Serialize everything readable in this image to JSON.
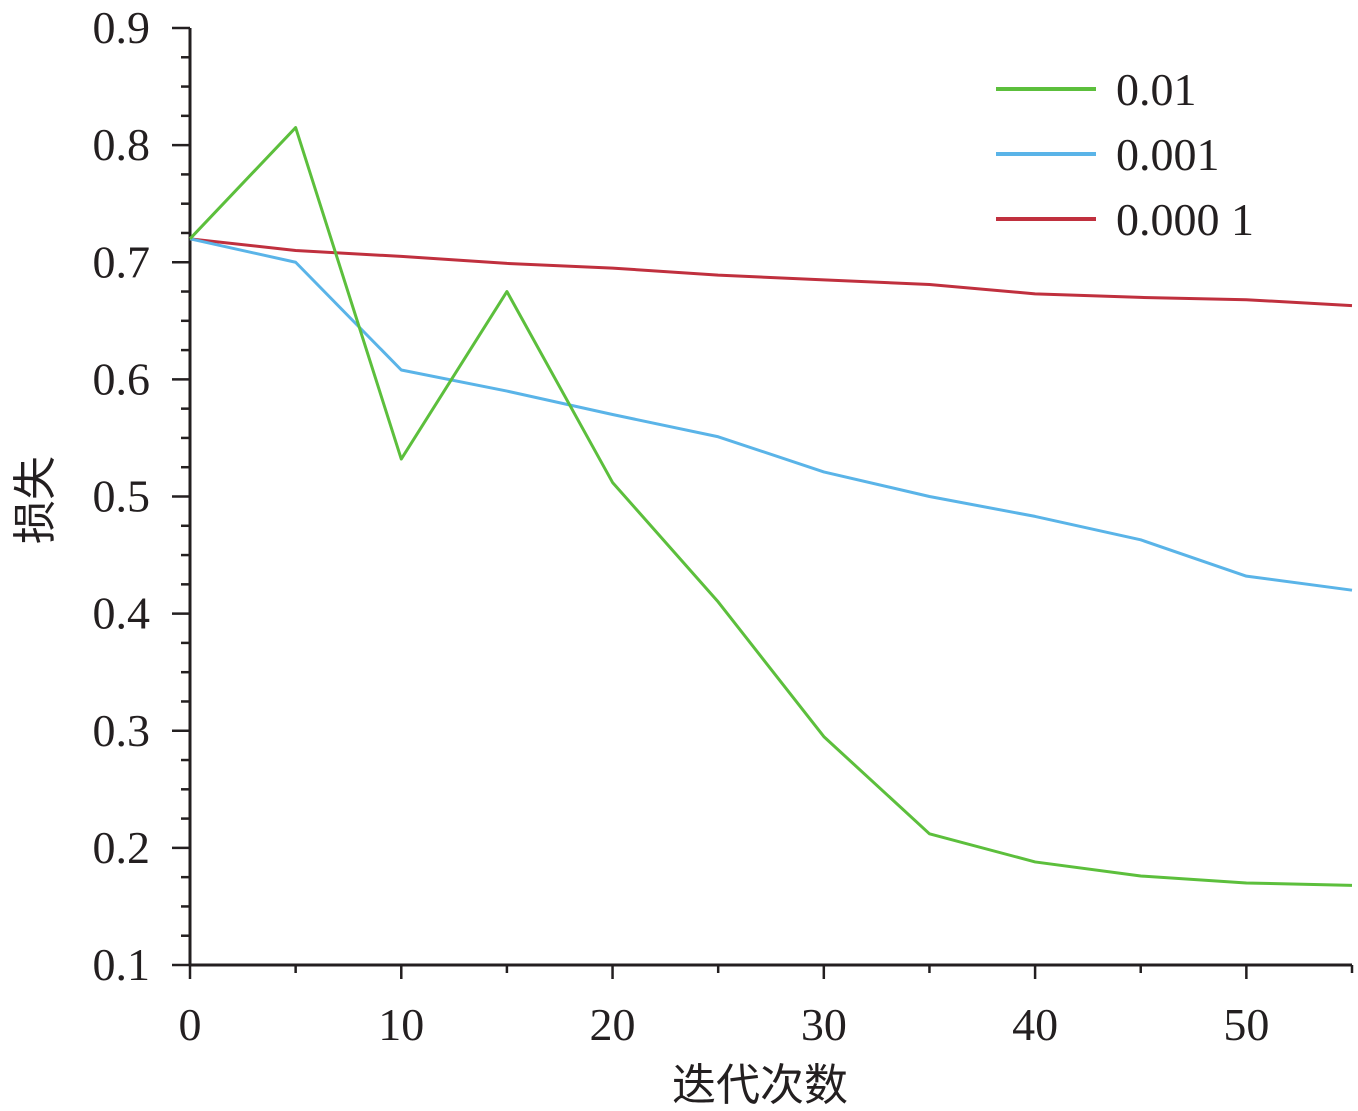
{
  "chart_data": {
    "type": "line",
    "title": "",
    "xlabel": "迭代次数",
    "ylabel": "损失",
    "xlim": [
      0,
      55
    ],
    "ylim": [
      0.1,
      0.9
    ],
    "xticks": [
      0,
      10,
      20,
      30,
      40,
      50
    ],
    "xtick_labels": [
      "0",
      "10",
      "20",
      "30",
      "40",
      "50"
    ],
    "yticks": [
      0.1,
      0.2,
      0.3,
      0.4,
      0.5,
      0.6,
      0.7,
      0.8,
      0.9
    ],
    "ytick_labels": [
      "0.1",
      "0.2",
      "0.3",
      "0.4",
      "0.5",
      "0.6",
      "0.7",
      "0.8",
      "0.9"
    ],
    "grid": false,
    "legend_position": "top-right",
    "x": [
      0,
      5,
      10,
      15,
      20,
      25,
      30,
      35,
      40,
      45,
      50,
      55
    ],
    "series": [
      {
        "name": "0.01",
        "color": "#5cbf3c",
        "values": [
          0.72,
          0.815,
          0.532,
          0.675,
          0.512,
          0.41,
          0.295,
          0.212,
          0.188,
          0.176,
          0.17,
          0.168
        ]
      },
      {
        "name": "0.001",
        "color": "#5ab4e8",
        "values": [
          0.72,
          0.7,
          0.608,
          0.59,
          0.57,
          0.551,
          0.521,
          0.5,
          0.483,
          0.463,
          0.432,
          0.42
        ]
      },
      {
        "name": "0.000 1",
        "color": "#c0303e",
        "values": [
          0.72,
          0.71,
          0.705,
          0.699,
          0.695,
          0.689,
          0.685,
          0.681,
          0.673,
          0.67,
          0.668,
          0.663
        ]
      }
    ]
  }
}
